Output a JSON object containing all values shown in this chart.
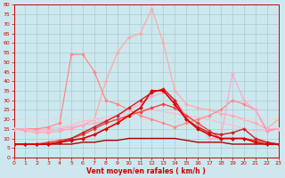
{
  "background_color": "#cce8ee",
  "grid_color": "#aacccc",
  "xlabel": "Vent moyen/en rafales ( km/h )",
  "xlabel_color": "#cc0000",
  "tick_color": "#cc0000",
  "hours": [
    0,
    1,
    2,
    3,
    4,
    5,
    6,
    7,
    8,
    9,
    10,
    11,
    12,
    13,
    14,
    15,
    16,
    17,
    18,
    19,
    20,
    21,
    22,
    23
  ],
  "series": [
    {
      "values": [
        15,
        14,
        13,
        13,
        14,
        15,
        17,
        20,
        40,
        55,
        63,
        65,
        78,
        60,
        35,
        28,
        26,
        25,
        23,
        22,
        20,
        18,
        15,
        20
      ],
      "color": "#ffaaaa",
      "linewidth": 0.9,
      "marker": "D",
      "markersize": 2.0,
      "zorder": 2
    },
    {
      "values": [
        15,
        15,
        15,
        15,
        16,
        17,
        19,
        20,
        21,
        22,
        23,
        24,
        25,
        24,
        23,
        22,
        21,
        20,
        18,
        17,
        15,
        14,
        14,
        15
      ],
      "color": "#ffbbcc",
      "linewidth": 0.9,
      "marker": null,
      "markersize": 0,
      "zorder": 2
    },
    {
      "values": [
        15,
        15,
        15,
        16,
        18,
        54,
        54,
        45,
        30,
        28,
        25,
        22,
        20,
        18,
        16,
        18,
        20,
        22,
        25,
        30,
        28,
        25,
        14,
        15
      ],
      "color": "#ff8888",
      "linewidth": 0.9,
      "marker": "D",
      "markersize": 2.0,
      "zorder": 3
    },
    {
      "values": [
        7,
        7,
        7,
        7,
        8,
        9,
        10,
        12,
        15,
        18,
        22,
        26,
        35,
        35,
        28,
        20,
        15,
        12,
        10,
        10,
        10,
        8,
        7,
        7
      ],
      "color": "#dd0000",
      "linewidth": 1.2,
      "marker": "D",
      "markersize": 2.0,
      "zorder": 5
    },
    {
      "values": [
        7,
        7,
        7,
        8,
        9,
        10,
        12,
        15,
        18,
        20,
        22,
        24,
        26,
        28,
        26,
        22,
        18,
        14,
        10,
        10,
        10,
        9,
        8,
        7
      ],
      "color": "#ee4444",
      "linewidth": 1.0,
      "marker": "D",
      "markersize": 2.0,
      "zorder": 4
    },
    {
      "values": [
        7,
        7,
        7,
        7,
        7,
        7,
        8,
        8,
        9,
        9,
        10,
        10,
        10,
        10,
        10,
        9,
        8,
        8,
        8,
        7,
        7,
        7,
        7,
        7
      ],
      "color": "#aa0000",
      "linewidth": 1.0,
      "marker": null,
      "markersize": 0,
      "zorder": 4
    },
    {
      "values": [
        20,
        20,
        20,
        20,
        20,
        20,
        20,
        20,
        20,
        20,
        20,
        20,
        20,
        20,
        20,
        20,
        20,
        20,
        20,
        20,
        20,
        20,
        20,
        20
      ],
      "color": "#ffcccc",
      "linewidth": 0.8,
      "marker": null,
      "markersize": 0,
      "zorder": 2
    },
    {
      "values": [
        7,
        7,
        7,
        7,
        8,
        10,
        13,
        16,
        19,
        22,
        26,
        30,
        34,
        36,
        30,
        20,
        16,
        13,
        12,
        13,
        15,
        10,
        8,
        7
      ],
      "color": "#cc2222",
      "linewidth": 1.0,
      "marker": "D",
      "markersize": 2.0,
      "zorder": 4
    },
    {
      "values": [
        15,
        15,
        14,
        14,
        15,
        16,
        17,
        18,
        19,
        22,
        25,
        28,
        32,
        34,
        30,
        22,
        18,
        10,
        10,
        44,
        30,
        25,
        15,
        15
      ],
      "color": "#ffaacc",
      "linewidth": 0.9,
      "marker": "D",
      "markersize": 2.0,
      "zorder": 3
    }
  ],
  "ylim": [
    0,
    80
  ],
  "yticks": [
    0,
    5,
    10,
    15,
    20,
    25,
    30,
    35,
    40,
    45,
    50,
    55,
    60,
    65,
    70,
    75,
    80
  ],
  "xlim": [
    0,
    23
  ],
  "xticks": [
    0,
    1,
    2,
    3,
    4,
    5,
    6,
    7,
    8,
    9,
    10,
    11,
    12,
    13,
    14,
    15,
    16,
    17,
    18,
    19,
    20,
    21,
    22,
    23
  ]
}
